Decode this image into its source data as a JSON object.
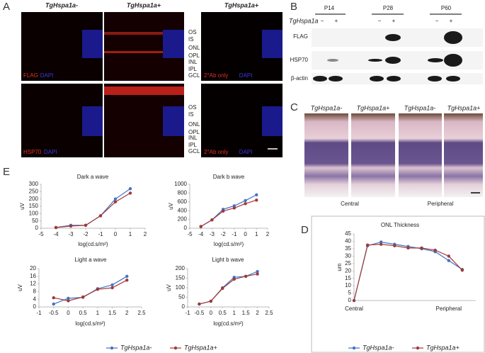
{
  "panel_labels": [
    "A",
    "B",
    "C",
    "D",
    "E"
  ],
  "panel_a": {
    "columns": [
      "TgHspa1a-",
      "TgHspa1a+",
      "TgHspa1a+"
    ],
    "layers": [
      "OS",
      "IS",
      "ONL",
      "OPL",
      "INL",
      "IPL",
      "GCL"
    ],
    "top_stain": [
      "FLAG",
      "DAPI"
    ],
    "bottom_stain": [
      "HSP70",
      "DAPI"
    ],
    "control_stain": [
      "2°Ab only",
      "DAPI"
    ]
  },
  "panel_b": {
    "ages": [
      "P14",
      "P28",
      "P60"
    ],
    "genotype": "TgHspa1a",
    "minus": "−",
    "plus": "+",
    "rows": [
      "FLAG",
      "HSP70",
      "β-actin"
    ]
  },
  "panel_c": {
    "columns": [
      "TgHspa1a-",
      "TgHspa1a+",
      "TgHspa1a-",
      "TgHspa1a+"
    ],
    "regions": [
      "Central",
      "Peripheral"
    ]
  },
  "chart_data": [
    {
      "type": "line",
      "title": "Dark a wave",
      "x_label": "log(cd.s/m²)",
      "y_label": "uV",
      "x": [
        -4,
        -3,
        -2,
        -1,
        0,
        1
      ],
      "xlim": [
        -5,
        2
      ],
      "xticks": [
        -5,
        -4,
        -3,
        -2,
        -1,
        0,
        1,
        2
      ],
      "ylim": [
        0,
        300
      ],
      "yticks": [
        0,
        50,
        100,
        150,
        200,
        250,
        300
      ],
      "series": [
        {
          "name": "TgHspa1a-",
          "color": "#4472c4",
          "values": [
            5,
            20,
            20,
            85,
            200,
            270
          ]
        },
        {
          "name": "TgHspa1a+",
          "color": "#9e3a38",
          "values": [
            5,
            15,
            20,
            85,
            180,
            240
          ]
        }
      ]
    },
    {
      "type": "line",
      "title": "Dark b wave",
      "x_label": "log(cd.s/m²)",
      "y_label": "uV",
      "x": [
        -4,
        -3,
        -2,
        -1,
        0,
        1
      ],
      "xlim": [
        -5,
        2
      ],
      "xticks": [
        -5,
        -4,
        -3,
        -2,
        -1,
        0,
        1,
        2
      ],
      "ylim": [
        0,
        1000
      ],
      "yticks": [
        0,
        200,
        400,
        600,
        800,
        1000
      ],
      "series": [
        {
          "name": "TgHspa1a-",
          "color": "#4472c4",
          "values": [
            40,
            190,
            430,
            510,
            630,
            760
          ]
        },
        {
          "name": "TgHspa1a+",
          "color": "#9e3a38",
          "values": [
            40,
            190,
            390,
            460,
            560,
            640
          ]
        }
      ]
    },
    {
      "type": "line",
      "title": "Light a wave",
      "x_label": "log(cd.s/m²)",
      "y_label": "uV",
      "x": [
        -0.5,
        0,
        0.5,
        1,
        1.5,
        2
      ],
      "xlim": [
        -1,
        2.5
      ],
      "xticks": [
        -1,
        -0.5,
        0,
        0.5,
        1,
        1.5,
        2,
        2.5
      ],
      "ylim": [
        0,
        20
      ],
      "yticks": [
        0,
        4,
        8,
        12,
        16,
        20
      ],
      "series": [
        {
          "name": "TgHspa1a-",
          "color": "#4472c4",
          "values": [
            1.5,
            4.5,
            5,
            9.5,
            11.5,
            16
          ]
        },
        {
          "name": "TgHspa1a+",
          "color": "#9e3a38",
          "values": [
            4.8,
            3.2,
            5.2,
            9.2,
            10,
            14
          ]
        }
      ]
    },
    {
      "type": "line",
      "title": "Light b wave",
      "x_label": "log(cd.s/m²)",
      "y_label": "uV",
      "x": [
        -0.5,
        0,
        0.5,
        1,
        1.5,
        2
      ],
      "xlim": [
        -1,
        2.5
      ],
      "xticks": [
        -1,
        -0.5,
        0,
        0.5,
        1,
        1.5,
        2,
        2.5
      ],
      "ylim": [
        0,
        200
      ],
      "yticks": [
        0,
        50,
        100,
        150,
        200
      ],
      "series": [
        {
          "name": "TgHspa1a-",
          "color": "#4472c4",
          "values": [
            15,
            30,
            100,
            155,
            160,
            185
          ]
        },
        {
          "name": "TgHspa1a+",
          "color": "#9e3a38",
          "values": [
            15,
            30,
            97,
            145,
            160,
            172
          ]
        }
      ]
    },
    {
      "type": "line",
      "title": "ONL Thickness",
      "y_label": "um",
      "categories": [
        "Central",
        null,
        null,
        null,
        null,
        null,
        null,
        "Peripheral",
        null
      ],
      "ylim": [
        0,
        45
      ],
      "yticks": [
        0,
        5,
        10,
        15,
        20,
        25,
        30,
        35,
        40,
        45
      ],
      "series": [
        {
          "name": "TgHspa1a-",
          "color": "#4472c4",
          "values": [
            0,
            37,
            39.5,
            38,
            36.5,
            35,
            33,
            27,
            21
          ]
        },
        {
          "name": "TgHspa1a+",
          "color": "#9e3a38",
          "values": [
            0,
            37.5,
            38,
            37,
            35.5,
            35.5,
            34,
            30,
            20.5
          ]
        }
      ]
    }
  ]
}
